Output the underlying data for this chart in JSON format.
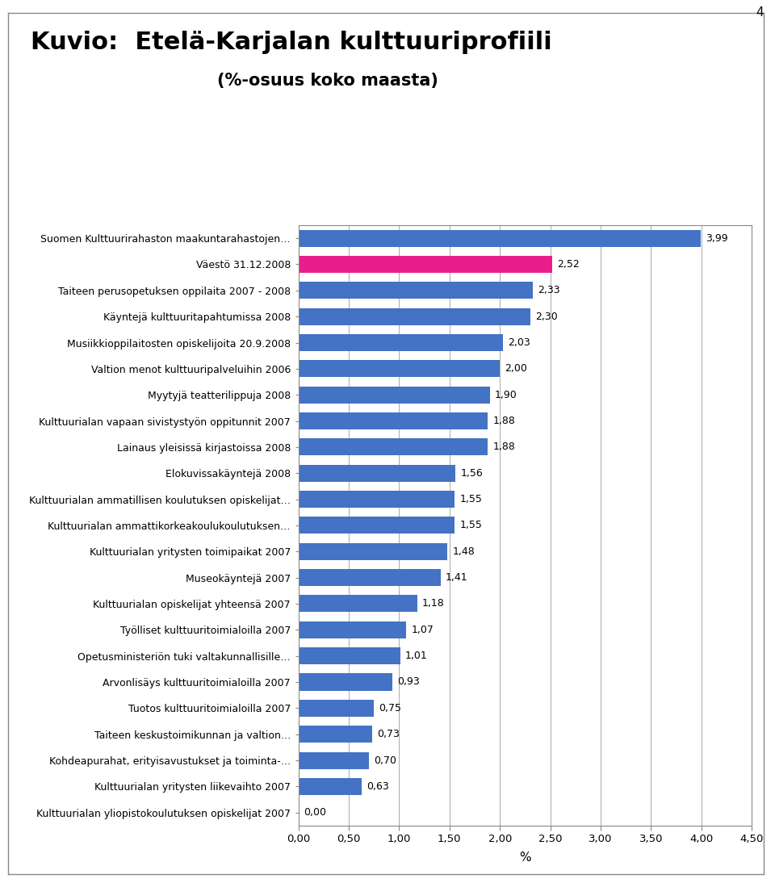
{
  "title_line1": "Kuvio:  Etelä-Karjalan kulttuuriprofiili",
  "title_line2": "(%-osuus koko maasta)",
  "page_number": "4",
  "categories": [
    "Suomen Kulttuurirahaston maakuntarahastojen…",
    "Väestö 31.12.2008",
    "Taiteen perusopetuksen oppilaita 2007 - 2008",
    "Käyntejä kulttuuritapahtumissa 2008",
    "Musiikkioppilaitosten opiskelijoita 20.9.2008",
    "Valtion menot kulttuuripalveluihin 2006",
    "Myytyjä teatterilippuja 2008",
    "Kulttuurialan vapaan sivistystyön oppitunnit 2007",
    "Lainaus yleisissä kirjastoissa 2008",
    "Elokuvissakäyntejä 2008",
    "Kulttuurialan ammatillisen koulutuksen opiskelijat…",
    "Kulttuurialan ammattikorkeakoulukoulutuksen…",
    "Kulttuurialan yritysten toimipaikat 2007",
    "Museokäyntejä 2007",
    "Kulttuurialan opiskelijat yhteensä 2007",
    "Työlliset kulttuuritoimialoilla 2007",
    "Opetusministeriön tuki valtakunnallisille…",
    "Arvonlisäys kulttuuritoimialoilla 2007",
    "Tuotos kulttuuritoimialoilla 2007",
    "Taiteen keskustoimikunnan ja valtion…",
    "Kohdeapurahat, erityisavustukset ja toiminta-…",
    "Kulttuurialan yritysten liikevaihto 2007",
    "Kulttuurialan yliopistokoulutuksen opiskelijat 2007"
  ],
  "values": [
    3.99,
    2.52,
    2.33,
    2.3,
    2.03,
    2.0,
    1.9,
    1.88,
    1.88,
    1.56,
    1.55,
    1.55,
    1.48,
    1.41,
    1.18,
    1.07,
    1.01,
    0.93,
    0.75,
    0.73,
    0.7,
    0.63,
    0.0
  ],
  "bar_colors": [
    "#4472C4",
    "#E91E8C",
    "#4472C4",
    "#4472C4",
    "#4472C4",
    "#4472C4",
    "#4472C4",
    "#4472C4",
    "#4472C4",
    "#4472C4",
    "#4472C4",
    "#4472C4",
    "#4472C4",
    "#4472C4",
    "#4472C4",
    "#4472C4",
    "#4472C4",
    "#4472C4",
    "#4472C4",
    "#4472C4",
    "#4472C4",
    "#4472C4",
    "#4472C4"
  ],
  "xlim": [
    0,
    4.5
  ],
  "xticks": [
    0.0,
    0.5,
    1.0,
    1.5,
    2.0,
    2.5,
    3.0,
    3.5,
    4.0,
    4.5
  ],
  "xlabel": "%",
  "background_color": "#FFFFFF",
  "grid_color": "#AAAAAA",
  "label_fontsize": 9.0,
  "value_fontsize": 9.0,
  "title_fontsize1": 22,
  "title_fontsize2": 15
}
